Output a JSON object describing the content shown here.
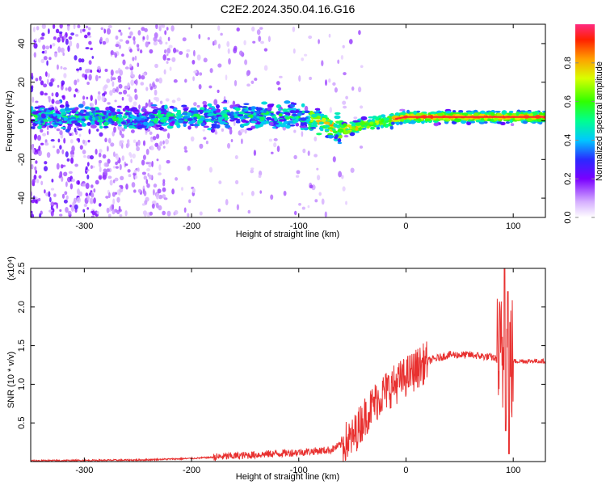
{
  "title": "C2E2.2024.350.04.16.G16",
  "chart_data": [
    {
      "type": "heatmap",
      "xlabel": "Height of straight line (km)",
      "ylabel": "Frequency (Hz)",
      "xlim": [
        -350,
        130
      ],
      "ylim": [
        -50,
        50
      ],
      "xticks": [
        -300,
        -200,
        -100,
        0,
        100
      ],
      "yticks": [
        -40,
        -20,
        0,
        20,
        40
      ],
      "colorbar": {
        "label": "Normalized spectral amplitude",
        "range": [
          0,
          1
        ],
        "ticks": [
          0.0,
          0.2,
          0.4,
          0.6,
          0.8
        ]
      },
      "ridge": [
        {
          "x": -350,
          "y": 2
        },
        {
          "x": -300,
          "y": 2
        },
        {
          "x": -250,
          "y": 1
        },
        {
          "x": -200,
          "y": 2
        },
        {
          "x": -150,
          "y": 3
        },
        {
          "x": -100,
          "y": 2
        },
        {
          "x": -80,
          "y": 0
        },
        {
          "x": -70,
          "y": -3
        },
        {
          "x": -60,
          "y": -4
        },
        {
          "x": -50,
          "y": -4
        },
        {
          "x": -40,
          "y": -2
        },
        {
          "x": -20,
          "y": 0
        },
        {
          "x": 0,
          "y": 2
        },
        {
          "x": 50,
          "y": 2
        },
        {
          "x": 100,
          "y": 2
        },
        {
          "x": 130,
          "y": 2
        }
      ]
    },
    {
      "type": "line",
      "xlabel": "Height of straight line (km)",
      "ylabel": "SNR (10 * v/v)",
      "multiplier": "(x10⁴)",
      "xlim": [
        -350,
        130
      ],
      "ylim": [
        0,
        2.5
      ],
      "xticks": [
        -300,
        -200,
        -100,
        0,
        100
      ],
      "yticks": [
        0.5,
        1.0,
        1.5,
        2.0,
        2.5
      ],
      "color": "#e8302f",
      "envelope": [
        {
          "x": -350,
          "y": 0.01
        },
        {
          "x": -250,
          "y": 0.02
        },
        {
          "x": -200,
          "y": 0.04
        },
        {
          "x": -150,
          "y": 0.08
        },
        {
          "x": -100,
          "y": 0.12
        },
        {
          "x": -70,
          "y": 0.15
        },
        {
          "x": -50,
          "y": 0.3
        },
        {
          "x": -40,
          "y": 0.55
        },
        {
          "x": -30,
          "y": 0.75
        },
        {
          "x": -20,
          "y": 0.9
        },
        {
          "x": -10,
          "y": 1.0
        },
        {
          "x": 0,
          "y": 1.1
        },
        {
          "x": 10,
          "y": 1.2
        },
        {
          "x": 20,
          "y": 1.3
        },
        {
          "x": 40,
          "y": 1.38
        },
        {
          "x": 60,
          "y": 1.38
        },
        {
          "x": 80,
          "y": 1.35
        },
        {
          "x": 90,
          "y": 1.3
        },
        {
          "x": 100,
          "y": 1.3
        },
        {
          "x": 130,
          "y": 1.3
        }
      ],
      "spikes": [
        {
          "x": 92,
          "y": 2.5
        },
        {
          "x": 93,
          "y": 0.4
        },
        {
          "x": 95,
          "y": 2.2
        },
        {
          "x": 96,
          "y": 0.1
        },
        {
          "x": 97,
          "y": 1.8
        }
      ]
    }
  ]
}
